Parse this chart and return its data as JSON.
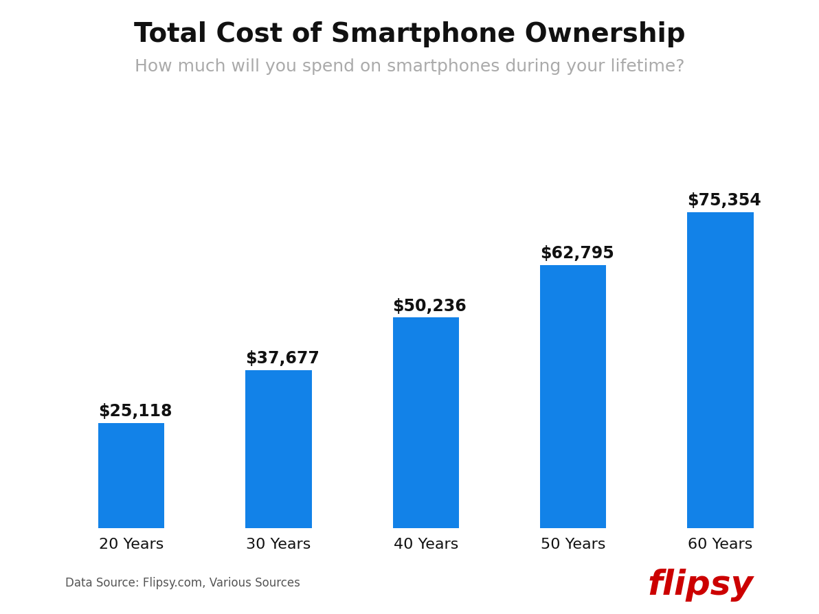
{
  "title": "Total Cost of Smartphone Ownership",
  "subtitle": "How much will you spend on smartphones during your lifetime?",
  "categories": [
    "20 Years",
    "30 Years",
    "40 Years",
    "50 Years",
    "60 Years"
  ],
  "values": [
    25118,
    37677,
    50236,
    62795,
    75354
  ],
  "labels": [
    "$25,118",
    "$37,677",
    "$50,236",
    "$62,795",
    "$75,354"
  ],
  "bar_color": "#1282e8",
  "title_color": "#111111",
  "subtitle_color": "#aaaaaa",
  "label_color": "#111111",
  "tick_color": "#111111",
  "source_text": "Data Source: Flipsy.com, Various Sources",
  "source_color": "#555555",
  "brand_text": "flipsy",
  "brand_color": "#cc0000",
  "background_color": "#ffffff",
  "ylim": [
    0,
    85000
  ],
  "title_fontsize": 28,
  "subtitle_fontsize": 18,
  "label_fontsize": 17,
  "tick_fontsize": 16,
  "source_fontsize": 12,
  "brand_fontsize": 36,
  "bar_width": 0.45
}
